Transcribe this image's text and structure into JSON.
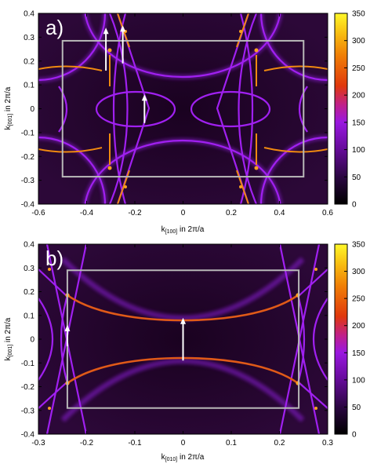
{
  "chart_data": [
    {
      "type": "heatmap",
      "panel_label": "a)",
      "xlabel_main": "k",
      "xlabel_sub": "[100]",
      "xlabel_tail": " in 2π/a",
      "ylabel_main": "k",
      "ylabel_sub": "[001]",
      "ylabel_tail": " in 2π/a",
      "xlim": [
        -0.6,
        0.6
      ],
      "ylim": [
        -0.4,
        0.4
      ],
      "x_ticks": [
        "-0.6",
        "-0.4",
        "-0.2",
        "0",
        "0.2",
        "0.4",
        "0.6"
      ],
      "y_ticks": [
        "-0.4",
        "-0.3",
        "-0.2",
        "-0.1",
        "0",
        "0.1",
        "0.2",
        "0.3",
        "0.4"
      ],
      "colorbar": {
        "range": [
          0,
          350
        ],
        "ticks": [
          "0",
          "50",
          "100",
          "150",
          "200",
          "250",
          "300",
          "350"
        ]
      },
      "brillouin_zone": {
        "x": [
          -0.5,
          0.5
        ],
        "y": [
          -0.285,
          0.285
        ]
      },
      "arrows": [
        {
          "x": -0.32,
          "y_from": 0.16,
          "y_to": 0.34
        },
        {
          "x": -0.25,
          "y_from": 0.19,
          "y_to": 0.35
        },
        {
          "x": -0.16,
          "y_from": -0.06,
          "y_to": 0.06
        }
      ]
    },
    {
      "type": "heatmap",
      "panel_label": "b)",
      "xlabel_main": "k",
      "xlabel_sub": "[010]",
      "xlabel_tail": " in 2π/a",
      "ylabel_main": "k",
      "ylabel_sub": "[001]",
      "ylabel_tail": " in 2π/a",
      "xlim": [
        -0.3,
        0.3
      ],
      "ylim": [
        -0.4,
        0.4
      ],
      "x_ticks": [
        "-0.3",
        "-0.2",
        "-0.1",
        "0",
        "0.1",
        "0.2",
        "0.3"
      ],
      "y_ticks": [
        "-0.4",
        "-0.3",
        "-0.2",
        "-0.1",
        "0",
        "0.1",
        "0.2",
        "0.3",
        "0.4"
      ],
      "colorbar": {
        "range": [
          0,
          350
        ],
        "ticks": [
          "0",
          "50",
          "100",
          "150",
          "200",
          "250",
          "300",
          "350"
        ]
      },
      "brillouin_zone": {
        "x": [
          -0.24,
          0.24
        ],
        "y": [
          -0.29,
          0.29
        ]
      },
      "arrows": [
        {
          "x": -0.24,
          "y_from": -0.03,
          "y_to": 0.06
        },
        {
          "x": 0.0,
          "y_from": -0.09,
          "y_to": 0.09
        }
      ]
    }
  ],
  "colors": {
    "background": "#1c0624",
    "bands_low": "#8a1dd6",
    "bands_high": "#f08a10",
    "bz_frame": "#b8b8b8",
    "arrow": "#ffffff"
  }
}
